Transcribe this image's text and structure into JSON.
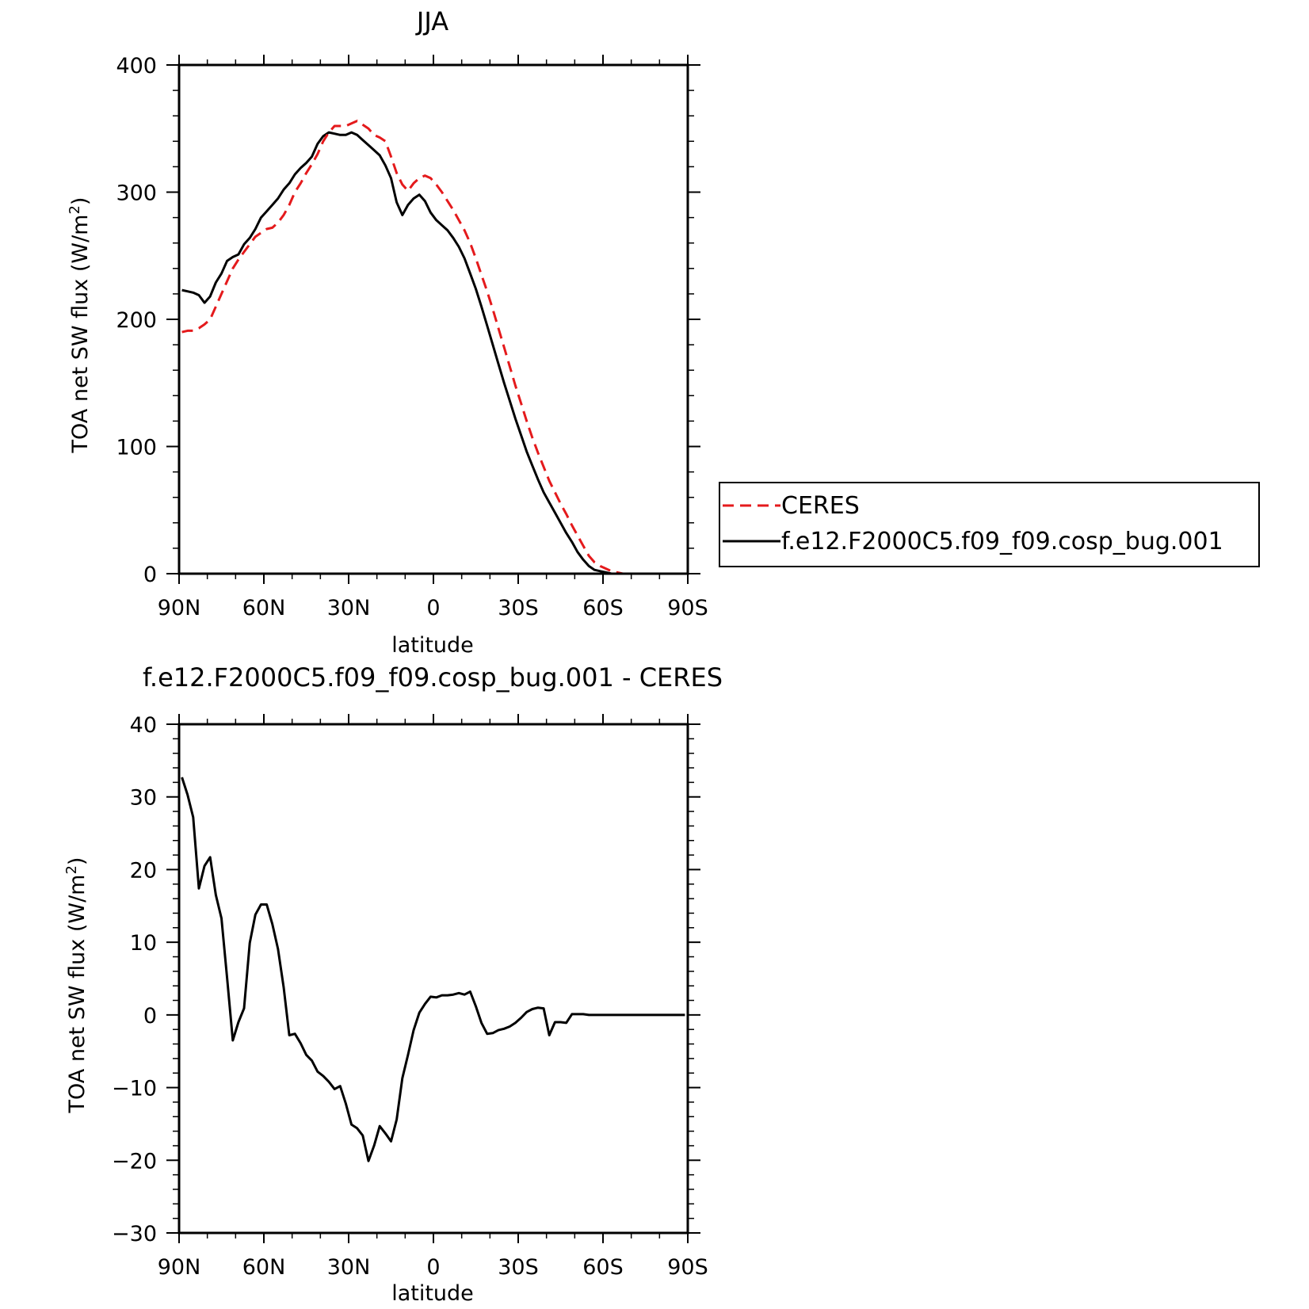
{
  "chart_data": [
    {
      "type": "line",
      "title": "JJA",
      "xlabel": "latitude",
      "ylabel": "TOA net SW flux (W/m²)",
      "ylabel_parts": {
        "main": "TOA net SW flux (W/m",
        "sup": "2",
        "end": ")"
      },
      "xlim": [
        90,
        -90
      ],
      "ylim": [
        0,
        400
      ],
      "xticks": [
        {
          "value": 90,
          "label": "90N"
        },
        {
          "value": 60,
          "label": "60N"
        },
        {
          "value": 30,
          "label": "30N"
        },
        {
          "value": 0,
          "label": "0"
        },
        {
          "value": -30,
          "label": "30S"
        },
        {
          "value": -60,
          "label": "60S"
        },
        {
          "value": -90,
          "label": "90S"
        }
      ],
      "yticks": [
        {
          "value": 0,
          "label": "0"
        },
        {
          "value": 100,
          "label": "100"
        },
        {
          "value": 200,
          "label": "200"
        },
        {
          "value": 300,
          "label": "300"
        },
        {
          "value": 400,
          "label": "400"
        }
      ],
      "legend": "right",
      "grid": false,
      "series": [
        {
          "name": "CERES",
          "color": "#e41a1c",
          "dash": "dashed",
          "x": [
            89,
            87,
            85,
            83,
            81,
            79,
            77,
            75,
            73,
            71,
            69,
            67,
            65,
            63,
            61,
            59,
            57,
            55,
            53,
            51,
            49,
            47,
            45,
            43,
            41,
            39,
            37,
            35,
            33,
            31,
            29,
            27,
            25,
            23,
            21,
            19,
            17,
            15,
            13,
            11,
            9,
            7,
            5,
            3,
            1,
            -1,
            -3,
            -5,
            -7,
            -9,
            -11,
            -13,
            -15,
            -17,
            -19,
            -21,
            -23,
            -25,
            -27,
            -29,
            -31,
            -33,
            -35,
            -37,
            -39,
            -41,
            -43,
            -45,
            -47,
            -49,
            -51,
            -53,
            -55,
            -57,
            -59,
            -61,
            -63,
            -65,
            -67,
            -69,
            -71,
            -73,
            -75,
            -77,
            -79,
            -81,
            -83,
            -85,
            -87,
            -89
          ],
          "y": [
            190,
            191,
            191,
            193,
            196,
            200,
            210,
            220,
            230,
            240,
            247,
            253,
            259,
            265,
            268,
            271,
            272,
            276,
            282,
            290,
            300,
            307,
            315,
            322,
            330,
            340,
            347,
            352,
            352,
            352,
            354,
            356,
            353,
            350,
            345,
            343,
            340,
            328,
            315,
            306,
            301,
            307,
            311,
            313,
            311,
            306,
            300,
            293,
            286,
            278,
            270,
            260,
            248,
            235,
            222,
            208,
            193,
            178,
            163,
            148,
            134,
            120,
            107,
            95,
            84,
            73,
            64,
            55,
            47,
            38,
            30,
            22,
            14,
            9,
            6,
            4,
            2,
            1,
            0,
            0,
            0,
            0,
            0,
            0,
            0,
            0,
            0,
            0,
            0,
            0
          ],
          "x_plot": [
            89,
            87,
            85,
            83,
            81,
            79,
            77,
            75,
            73,
            71,
            69,
            67,
            65,
            63,
            61,
            59,
            57,
            55,
            53,
            51,
            49,
            47,
            45,
            43,
            41,
            39,
            37,
            35,
            33,
            31,
            29,
            27,
            25,
            23,
            21,
            19,
            17,
            15,
            13,
            11,
            9,
            7,
            5,
            3,
            1,
            -1,
            -3,
            -5,
            -7,
            -9,
            -11,
            -13,
            -15,
            -17,
            -19,
            -21,
            -23,
            -25,
            -27,
            -29,
            -31,
            -33,
            -35,
            -37,
            -39,
            -41,
            -43,
            -45,
            -47,
            -49,
            -51,
            -53,
            -55,
            -57,
            -59,
            -61,
            -63,
            -65,
            -67,
            -69,
            -71,
            -73,
            -75,
            -77,
            -79,
            -81,
            -83,
            -85,
            -87,
            -89
          ]
        },
        {
          "name": "f.e12.F2000C5.f09_f09.cosp_bug.001",
          "color": "#000000",
          "dash": "solid",
          "x": [
            89,
            87,
            85,
            83,
            81,
            79,
            77,
            75,
            73,
            71,
            69,
            67,
            65,
            63,
            61,
            59,
            57,
            55,
            53,
            51,
            49,
            47,
            45,
            43,
            41,
            39,
            37,
            35,
            33,
            31,
            29,
            27,
            25,
            23,
            21,
            19,
            17,
            15,
            13,
            11,
            9,
            7,
            5,
            3,
            1,
            -1,
            -3,
            -5,
            -7,
            -9,
            -11,
            -13,
            -15,
            -17,
            -19,
            -21,
            -23,
            -25,
            -27,
            -29,
            -31,
            -33,
            -35,
            -37,
            -39,
            -41,
            -43,
            -45,
            -47,
            -49,
            -51,
            -53,
            -55,
            -57,
            -59,
            -61,
            -63,
            -65,
            -67,
            -69,
            -71,
            -73,
            -75,
            -77,
            -79,
            -81,
            -83,
            -85,
            -87,
            -89
          ],
          "y": [
            223,
            222,
            221,
            219,
            213,
            218,
            229,
            236,
            246,
            249,
            251,
            259,
            264,
            271,
            280,
            285,
            290,
            295,
            302,
            307,
            314,
            319,
            323,
            328,
            338,
            344,
            347,
            346,
            345,
            345,
            347,
            345,
            341,
            337,
            333,
            329,
            321,
            311,
            292,
            282,
            290,
            295,
            298,
            293,
            284,
            278,
            274,
            270,
            264,
            257,
            248,
            236,
            224,
            210,
            195,
            180,
            165,
            150,
            136,
            122,
            109,
            96,
            85,
            74,
            64,
            56,
            48,
            40,
            32,
            25,
            17,
            11,
            6,
            3,
            2,
            1,
            0,
            0,
            0,
            0,
            0,
            0,
            0,
            0,
            0,
            0,
            0,
            0,
            0,
            0
          ]
        }
      ]
    },
    {
      "type": "line",
      "title": "f.e12.F2000C5.f09_f09.cosp_bug.001 - CERES",
      "xlabel": "latitude",
      "ylabel": "TOA net SW flux (W/m²)",
      "ylabel_parts": {
        "main": "TOA net SW flux (W/m",
        "sup": "2",
        "end": ")"
      },
      "xlim": [
        90,
        -90
      ],
      "ylim": [
        -30,
        40
      ],
      "xticks": [
        {
          "value": 90,
          "label": "90N"
        },
        {
          "value": 60,
          "label": "60N"
        },
        {
          "value": 30,
          "label": "30N"
        },
        {
          "value": 0,
          "label": "0"
        },
        {
          "value": -30,
          "label": "30S"
        },
        {
          "value": -60,
          "label": "60S"
        },
        {
          "value": -90,
          "label": "90S"
        }
      ],
      "yticks": [
        {
          "value": -30,
          "label": "−30"
        },
        {
          "value": -20,
          "label": "−20"
        },
        {
          "value": -10,
          "label": "−10"
        },
        {
          "value": 0,
          "label": "0"
        },
        {
          "value": 10,
          "label": "10"
        },
        {
          "value": 20,
          "label": "20"
        },
        {
          "value": 30,
          "label": "30"
        },
        {
          "value": 40,
          "label": "40"
        }
      ],
      "grid": false,
      "series": [
        {
          "name": "",
          "color": "#000000",
          "dash": "solid",
          "x": [
            89,
            87,
            85,
            83,
            81,
            79,
            77,
            75,
            73,
            71,
            69,
            67,
            65,
            63,
            61,
            59,
            57,
            55,
            53,
            51,
            49,
            47,
            45,
            43,
            41,
            39,
            37,
            35,
            33,
            31,
            29,
            27,
            25,
            23,
            21,
            19,
            17,
            15,
            13,
            11,
            9,
            7,
            5,
            3,
            1,
            -1,
            -3,
            -5,
            -7,
            -9,
            -11,
            -13,
            -15,
            -17,
            -19,
            -21,
            -23,
            -25,
            -27,
            -29,
            -31,
            -33,
            -35,
            -37,
            -39,
            -41,
            -43,
            -45,
            -47,
            -49,
            -51,
            -53,
            -55,
            -57,
            -59,
            -61,
            -63,
            -65,
            -67,
            -69,
            -71,
            -73,
            -75,
            -77,
            -79,
            -81,
            -83,
            -85,
            -87,
            -89
          ],
          "y": [
            32.7,
            30.3,
            27.2,
            17.4,
            20.5,
            21.7,
            16.5,
            13.3,
            5.1,
            -3.5,
            -1,
            0.9,
            9.9,
            13.8,
            15.2,
            15.2,
            12.5,
            9.1,
            3.8,
            -2.8,
            -2.6,
            -3.9,
            -5.5,
            -6.3,
            -7.8,
            -8.4,
            -9.2,
            -10.2,
            -9.8,
            -12.2,
            -15.1,
            -15.6,
            -16.6,
            -20.1,
            -18,
            -15.3,
            -16.3,
            -17.4,
            -14.4,
            -8.7,
            -5.5,
            -2.1,
            0.3,
            1.5,
            2.5,
            2.4,
            2.7,
            2.7,
            2.8,
            3,
            2.8,
            3.2,
            1.2,
            -1.1,
            -2.6,
            -2.5,
            -2.1,
            -1.9,
            -1.6,
            -1.1,
            -0.4,
            0.4,
            0.8,
            1,
            0.9,
            -2.8,
            -1,
            -1,
            -1.1,
            0.1,
            0.1,
            0.1,
            0,
            0,
            0,
            0,
            0,
            0,
            0,
            0,
            0,
            0,
            0,
            0,
            0,
            0,
            0,
            0,
            0,
            0
          ]
        }
      ]
    }
  ],
  "legend": {
    "entries": [
      {
        "label": "CERES",
        "color": "#e41a1c",
        "dash": "dashed"
      },
      {
        "label": "f.e12.F2000C5.f09_f09.cosp_bug.001",
        "color": "#000000",
        "dash": "solid"
      }
    ]
  }
}
